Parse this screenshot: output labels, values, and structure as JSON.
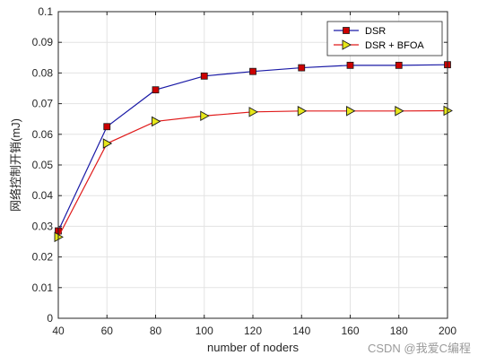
{
  "chart_data": {
    "type": "line",
    "title": "",
    "xlabel": "number of noders",
    "ylabel": "网络控制开销(mJ)",
    "xlim": [
      40,
      200
    ],
    "ylim": [
      0,
      0.1
    ],
    "grid": true,
    "legend_position": "top-right",
    "x_ticks": [
      "40",
      "60",
      "80",
      "100",
      "120",
      "140",
      "160",
      "180",
      "200"
    ],
    "y_ticks": [
      "0",
      "0.01",
      "0.02",
      "0.03",
      "0.04",
      "0.05",
      "0.06",
      "0.07",
      "0.08",
      "0.09",
      "0.1"
    ],
    "x": [
      40,
      60,
      80,
      100,
      120,
      140,
      160,
      180,
      200
    ],
    "series": [
      {
        "name": "DSR",
        "values": [
          0.0285,
          0.0625,
          0.0745,
          0.079,
          0.0805,
          0.0817,
          0.0825,
          0.0825,
          0.0827
        ],
        "line_color": "#1a1aa6",
        "marker": "square",
        "marker_fill": "#cc0000"
      },
      {
        "name": "DSR + BFOA",
        "values": [
          0.0265,
          0.057,
          0.0642,
          0.066,
          0.0673,
          0.0676,
          0.0676,
          0.0676,
          0.0677
        ],
        "line_color": "#e01b1b",
        "marker": "triangle-right",
        "marker_fill": "#e6e619"
      }
    ]
  },
  "watermark": "CSDN @我爱C编程"
}
